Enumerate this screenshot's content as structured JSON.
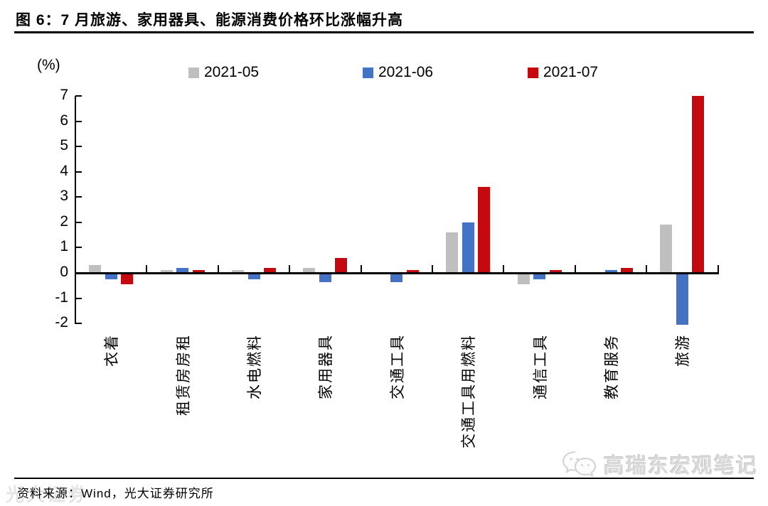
{
  "title": "图 6：7 月旅游、家用器具、能源消费价格环比涨幅升高",
  "unit_label": "(%)",
  "colors": {
    "series_gray": "#BFBFBF",
    "series_blue": "#4472C4",
    "series_red": "#C40A0F",
    "axis": "#000000",
    "watermark_gray": "#D9D9D9"
  },
  "chart_data": {
    "type": "bar",
    "title": "图 6：7 月旅游、家用器具、能源消费价格环比涨幅升高",
    "ylabel": "(%)",
    "ylim": [
      -2,
      7
    ],
    "yticks": [
      7,
      6,
      5,
      4,
      3,
      2,
      1,
      0,
      -1,
      -2
    ],
    "grid": false,
    "legend_position": "top",
    "categories": [
      "衣着",
      "租赁房房租",
      "水电燃料",
      "家用器具",
      "交通工具",
      "交通工具用燃料",
      "通信工具",
      "教育服务",
      "旅游"
    ],
    "series": [
      {
        "name": "2021-05",
        "color": "#BFBFBF",
        "values": [
          0.3,
          0.1,
          0.1,
          0.2,
          0.0,
          1.6,
          -0.4,
          0.0,
          1.9
        ]
      },
      {
        "name": "2021-06",
        "color": "#4472C4",
        "values": [
          -0.2,
          0.2,
          -0.2,
          -0.3,
          -0.3,
          2.0,
          -0.2,
          0.1,
          -2.0
        ]
      },
      {
        "name": "2021-07",
        "color": "#C40A0F",
        "values": [
          -0.4,
          0.1,
          0.2,
          0.6,
          0.1,
          3.4,
          0.1,
          0.2,
          7.0
        ]
      }
    ]
  },
  "footer": {
    "source": "资料来源：Wind，光大证券研究所"
  },
  "watermark": {
    "text": "高瑞东宏观笔记",
    "icon": "wechat-chat-bubbles-icon",
    "ghost_text": "光大证券"
  }
}
